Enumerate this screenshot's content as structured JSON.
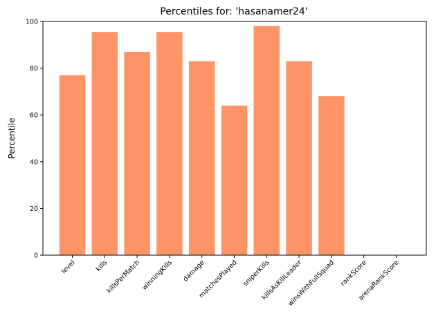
{
  "chart_data": {
    "type": "bar",
    "title": "Percentiles for: 'hasanamer24'",
    "xlabel": "",
    "ylabel": "Percentile",
    "categories": [
      "level",
      "kills",
      "killsPerMatch",
      "winningKills",
      "damage",
      "matchesPlayed",
      "sniperKills",
      "killsAsKillLeader",
      "winsWithFullSquad",
      "rankScore",
      "arenaRankScore"
    ],
    "values": [
      77,
      95.5,
      87,
      95.5,
      83,
      64,
      98,
      83,
      68,
      0,
      0
    ],
    "ylim": [
      0,
      100
    ],
    "yticks": [
      0,
      20,
      40,
      60,
      80,
      100
    ],
    "bar_color": "#ff9466",
    "grid": false
  }
}
